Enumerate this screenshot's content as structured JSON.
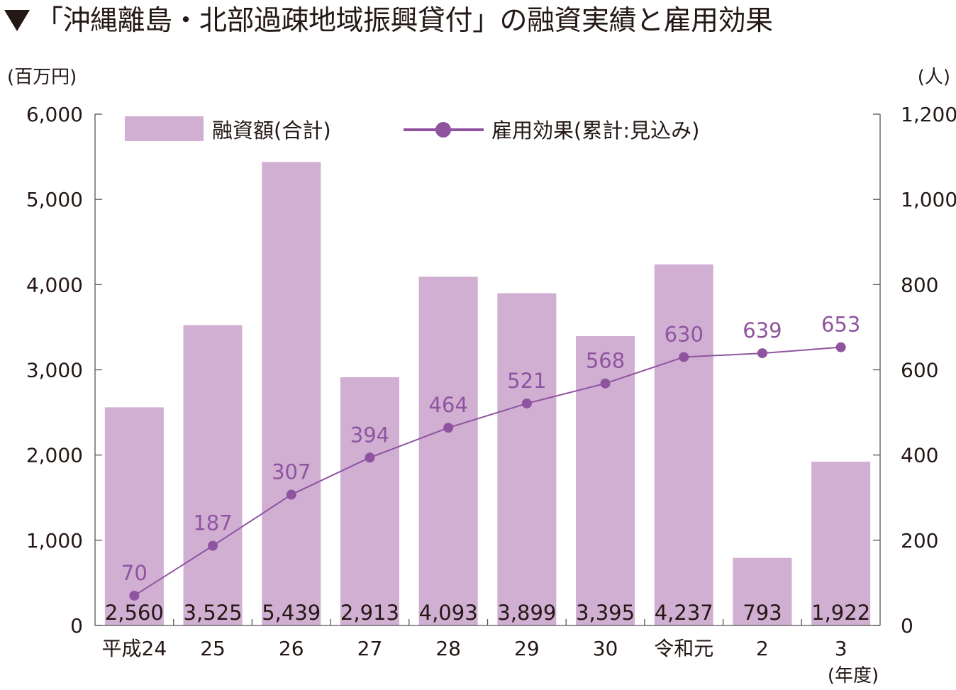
{
  "title": "「沖縄離島・北部過疎地域振興貸付」の融資実績と雇用効果",
  "chart_data": {
    "type": "bar+line",
    "categories": [
      "平成24",
      "25",
      "26",
      "27",
      "28",
      "29",
      "30",
      "令和元",
      "2",
      "3"
    ],
    "x_unit": "(年度)",
    "left_axis": {
      "unit": "(百万円)",
      "ylim": [
        0,
        6000
      ],
      "ticks": [
        0,
        1000,
        2000,
        3000,
        4000,
        5000,
        6000
      ],
      "tick_labels": [
        "0",
        "1,000",
        "2,000",
        "3,000",
        "4,000",
        "5,000",
        "6,000"
      ]
    },
    "right_axis": {
      "unit": "(人)",
      "ylim": [
        0,
        1200
      ],
      "ticks": [
        0,
        200,
        400,
        600,
        800,
        1000,
        1200
      ],
      "tick_labels": [
        "0",
        "200",
        "400",
        "600",
        "800",
        "1,000",
        "1,200"
      ]
    },
    "series": [
      {
        "name": "融資額(合計)",
        "type": "bar",
        "axis": "left",
        "color": "#d1afd2",
        "values": [
          2560,
          3525,
          5439,
          2913,
          4093,
          3899,
          3395,
          4237,
          793,
          1922
        ],
        "labels": [
          "2,560",
          "3,525",
          "5,439",
          "2,913",
          "4,093",
          "3,899",
          "3,395",
          "4,237",
          "793",
          "1,922"
        ]
      },
      {
        "name": "雇用効果(累計:見込み)",
        "type": "line",
        "axis": "right",
        "color": "#8f54a0",
        "values": [
          70,
          187,
          307,
          394,
          464,
          521,
          568,
          630,
          639,
          653
        ],
        "labels": [
          "70",
          "187",
          "307",
          "394",
          "464",
          "521",
          "568",
          "630",
          "639",
          "653"
        ]
      }
    ],
    "legend_position": "top"
  }
}
